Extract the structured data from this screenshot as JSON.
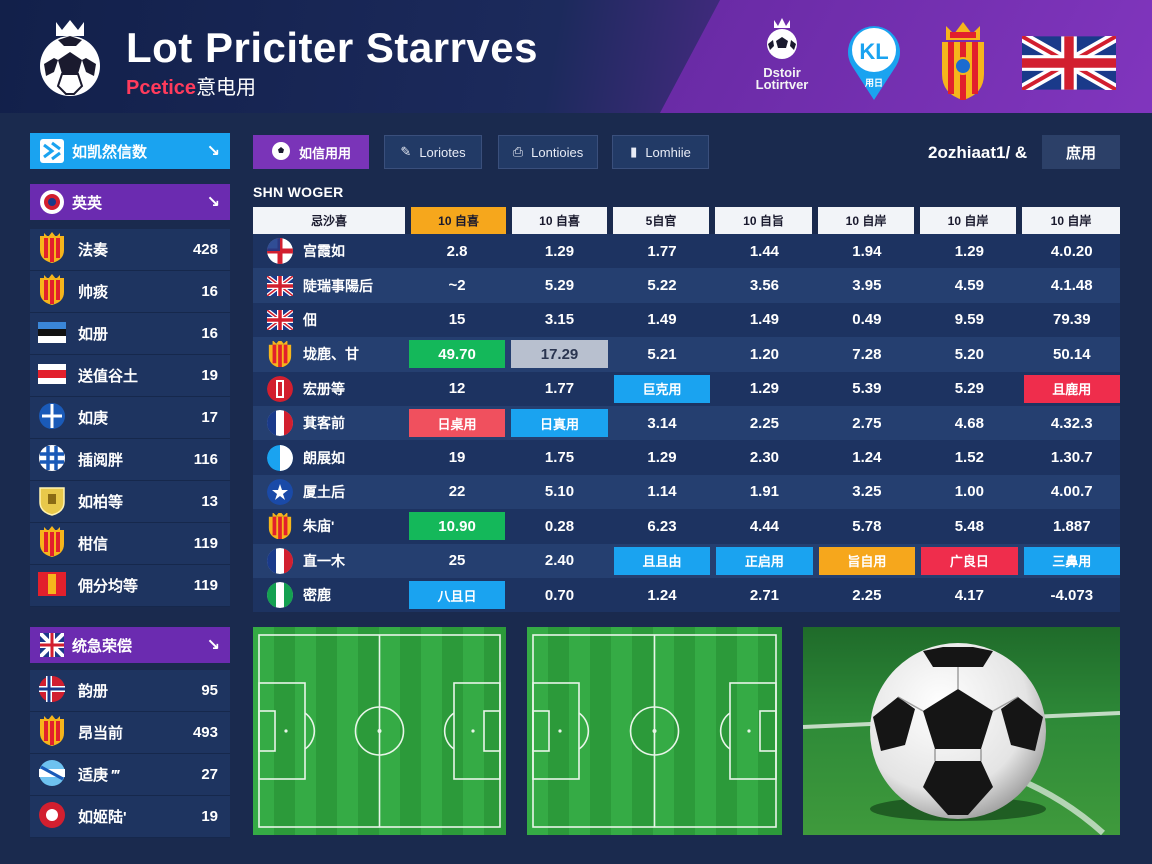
{
  "header": {
    "title": "Lot Priciter Starrves",
    "subtitle_accent": "Pcetice",
    "subtitle_rest": "意电用",
    "league_badge_text": "Dstoir Lotirtver",
    "kl_badge_text": "KL",
    "kl_badge_sub": "用日"
  },
  "left_panel": {
    "top_button": {
      "label": "如凯然信数",
      "chevron": "↘"
    },
    "group1": {
      "label": "英英",
      "chevron": "↘"
    },
    "leagues1": [
      {
        "name": "法奏",
        "count": "428",
        "crest": "spain"
      },
      {
        "name": "帅痰",
        "count": "16",
        "crest": "spain"
      },
      {
        "name": "如册",
        "count": "16",
        "crest": "estonia"
      },
      {
        "name": "送值谷土",
        "count": "19",
        "crest": "red-stripe"
      },
      {
        "name": "如庚",
        "count": "17",
        "crest": "blue-cross"
      },
      {
        "name": "插阅胖",
        "count": "116",
        "crest": "blue-check"
      },
      {
        "name": "如柏等",
        "count": "13",
        "crest": "gold-shield"
      },
      {
        "name": "柑信",
        "count": "119",
        "crest": "spain"
      },
      {
        "name": "佣分均等",
        "count": "119",
        "crest": "red-flag"
      }
    ],
    "group2": {
      "label": "统急荣偿",
      "chevron": "↘"
    },
    "leagues2": [
      {
        "name": "韵册",
        "count": "95",
        "crest": "norway"
      },
      {
        "name": "昂当前",
        "count": "493",
        "crest": "spain"
      },
      {
        "name": "适庚 ‴",
        "count": "27",
        "crest": "argentina"
      },
      {
        "name": "如姬陆'",
        "count": "19",
        "crest": "red-round"
      }
    ]
  },
  "toolbar": {
    "tabs": [
      {
        "label": "如信用用",
        "icon": "ball-icon",
        "active": true
      },
      {
        "label": "Loriotes",
        "icon": "edit-icon",
        "active": false
      },
      {
        "label": "Lontioies",
        "icon": "clip-icon",
        "active": false
      },
      {
        "label": "Lomhiie",
        "icon": "book-icon",
        "active": false
      }
    ],
    "date_label": "2ozhiaat1/ &",
    "date_button": "庶用"
  },
  "table": {
    "section_label": "SHN WOGER",
    "headers": [
      "忌沙喜",
      "10 自喜",
      "10 自喜",
      "5自官",
      "10 自旨",
      "10 自岸",
      "10 自岸",
      "10 自岸"
    ],
    "rows": [
      {
        "team": "宫霞如",
        "flag": "england",
        "cells": [
          {
            "v": "2.8"
          },
          {
            "v": "1.29"
          },
          {
            "v": "1.77"
          },
          {
            "v": "1.44"
          },
          {
            "v": "1.94"
          },
          {
            "v": "1.29"
          },
          {
            "v": "4.0.20"
          }
        ]
      },
      {
        "team": "陡瑞事陽后",
        "flag": "uk",
        "cells": [
          {
            "v": "~2"
          },
          {
            "v": "5.29"
          },
          {
            "v": "5.22"
          },
          {
            "v": "3.56"
          },
          {
            "v": "3.95"
          },
          {
            "v": "4.59"
          },
          {
            "v": "4.1.48"
          }
        ]
      },
      {
        "team": "佃",
        "flag": "uk",
        "cells": [
          {
            "v": "15"
          },
          {
            "v": "3.15"
          },
          {
            "v": "1.49"
          },
          {
            "v": "1.49"
          },
          {
            "v": "0.49"
          },
          {
            "v": "9.59"
          },
          {
            "v": "79.39"
          }
        ]
      },
      {
        "team": "垅鹿、甘",
        "flag": "spain",
        "cells": [
          {
            "v": "49.70",
            "hl": "green"
          },
          {
            "v": "17.29",
            "hl": "gray"
          },
          {
            "v": "5.21"
          },
          {
            "v": "1.20"
          },
          {
            "v": "7.28"
          },
          {
            "v": "5.20"
          },
          {
            "v": "50.14"
          }
        ]
      },
      {
        "team": "宏册等",
        "flag": "red-flag",
        "cells": [
          {
            "v": "12"
          },
          {
            "v": "1.77"
          },
          {
            "v": "巨克用",
            "hl": "blue"
          },
          {
            "v": "1.29"
          },
          {
            "v": "5.39"
          },
          {
            "v": "5.29"
          },
          {
            "v": "且鹿用",
            "hl": "red"
          }
        ]
      },
      {
        "team": "萁客前",
        "flag": "france",
        "cells": [
          {
            "v": "日桌用",
            "hl": "pink"
          },
          {
            "v": "日真用",
            "hl": "blue"
          },
          {
            "v": "3.14"
          },
          {
            "v": "2.25"
          },
          {
            "v": "2.75"
          },
          {
            "v": "4.68"
          },
          {
            "v": "4.32.3"
          }
        ]
      },
      {
        "team": "朗展如",
        "flag": "white-blue",
        "cells": [
          {
            "v": "19"
          },
          {
            "v": "1.75"
          },
          {
            "v": "1.29"
          },
          {
            "v": "2.30"
          },
          {
            "v": "1.24"
          },
          {
            "v": "1.52"
          },
          {
            "v": "1.30.7"
          }
        ]
      },
      {
        "team": "厦土后",
        "flag": "blue-star",
        "cells": [
          {
            "v": "22"
          },
          {
            "v": "5.10"
          },
          {
            "v": "1.14"
          },
          {
            "v": "1.91"
          },
          {
            "v": "3.25"
          },
          {
            "v": "1.00"
          },
          {
            "v": "4.00.7"
          }
        ]
      },
      {
        "team": "朱庙'",
        "flag": "spain",
        "cells": [
          {
            "v": "10.90",
            "hl": "green"
          },
          {
            "v": "0.28"
          },
          {
            "v": "6.23"
          },
          {
            "v": "4.44"
          },
          {
            "v": "5.78"
          },
          {
            "v": "5.48"
          },
          {
            "v": "1.887"
          }
        ]
      },
      {
        "team": "直一木",
        "flag": "france",
        "cells": [
          {
            "v": "25"
          },
          {
            "v": "2.40"
          },
          {
            "v": "且且由",
            "hl": "blue"
          },
          {
            "v": "正启用",
            "hl": "blue"
          },
          {
            "v": "旨自用",
            "hl": "orange"
          },
          {
            "v": "广良日",
            "hl": "red"
          },
          {
            "v": "三鼻用",
            "hl": "blue"
          }
        ]
      },
      {
        "team": "密鹿",
        "flag": "green-white",
        "cells": [
          {
            "v": "八且日",
            "hl": "blue"
          },
          {
            "v": "0.70"
          },
          {
            "v": "1.24"
          },
          {
            "v": "2.71"
          },
          {
            "v": "2.25"
          },
          {
            "v": "4.17"
          },
          {
            "v": "-4.073"
          }
        ]
      }
    ]
  },
  "colors": {
    "accent_blue": "#1aa3f0",
    "accent_purple": "#6b2bb0",
    "accent_green": "#14b85a",
    "accent_red": "#ef2d4c",
    "accent_orange": "#f6a71c"
  }
}
